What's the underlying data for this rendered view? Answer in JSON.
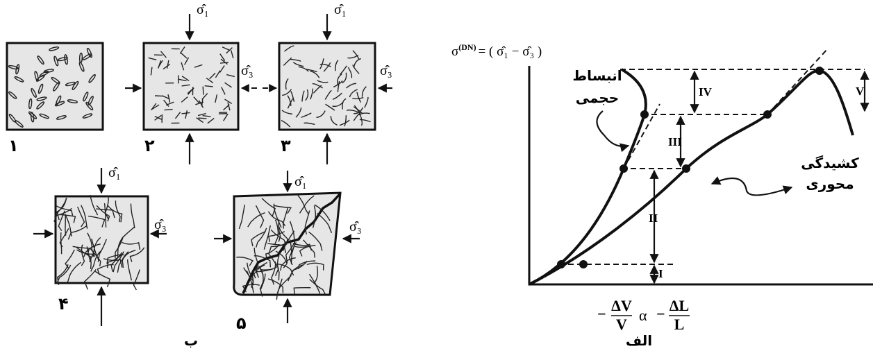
{
  "left_figure": {
    "label": "ب",
    "specimens": [
      "۱",
      "۲",
      "۳",
      "۴",
      "۵"
    ],
    "stress_labels": {
      "major": "σ̂₁",
      "minor": "σ̂₃"
    }
  },
  "right_figure": {
    "label": "الف",
    "y_axis_label": {
      "symbol": "σ",
      "superscript": "(DN)",
      "expression": "= ( σ̂₁ − σ̂₃ )"
    },
    "x_axis_label": {
      "minus": "−",
      "numerator_1": "ΔV",
      "denominator_1": "V",
      "relation": "α",
      "numerator_2": "ΔL",
      "denominator_2": "L"
    },
    "stages": [
      "I",
      "II",
      "III",
      "IV",
      "V"
    ],
    "annotations": {
      "volumetric": [
        "انبساط",
        "حجمی"
      ],
      "axial": [
        "کشیدگی",
        "محوری"
      ]
    }
  }
}
